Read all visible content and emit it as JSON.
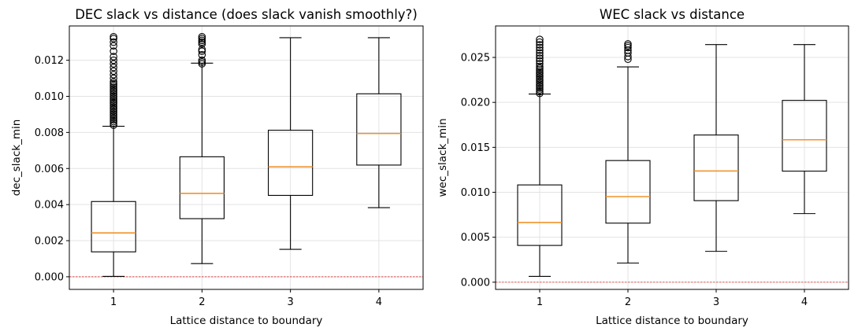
{
  "chart_data": [
    {
      "type": "boxplot",
      "title": "DEC slack vs distance (does slack vanish smoothly?)",
      "xlabel": "Lattice distance to boundary",
      "ylabel": "dec_slack_min",
      "categories": [
        "1",
        "2",
        "3",
        "4"
      ],
      "ylim": [
        -0.0007,
        0.0139
      ],
      "yticks": [
        "0.000",
        "0.002",
        "0.004",
        "0.006",
        "0.008",
        "0.010",
        "0.012"
      ],
      "ytick_values": [
        0.0,
        0.002,
        0.004,
        0.006,
        0.008,
        0.01,
        0.012
      ],
      "reference_line": 0.0,
      "grid": true,
      "boxes": [
        {
          "whislo": 2e-05,
          "q1": 0.00138,
          "med": 0.00243,
          "q3": 0.00417,
          "whishi": 0.00834,
          "fliers": [
            0.0084,
            0.0085,
            0.0086,
            0.0087,
            0.0088,
            0.0089,
            0.009,
            0.0091,
            0.0092,
            0.0093,
            0.0094,
            0.0095,
            0.0096,
            0.0097,
            0.0098,
            0.0099,
            0.01,
            0.0101,
            0.0102,
            0.0103,
            0.0104,
            0.0105,
            0.0106,
            0.0107,
            0.0108,
            0.011,
            0.0112,
            0.0114,
            0.0116,
            0.0118,
            0.012,
            0.0122,
            0.0125,
            0.0128,
            0.013,
            0.0132,
            0.0133
          ]
        },
        {
          "whislo": 0.00073,
          "q1": 0.00322,
          "med": 0.00462,
          "q3": 0.00665,
          "whishi": 0.01184,
          "fliers": [
            0.0118,
            0.0119,
            0.012,
            0.0123,
            0.0125,
            0.0126,
            0.0129,
            0.013,
            0.0131,
            0.0132,
            0.0133
          ]
        },
        {
          "whislo": 0.00152,
          "q1": 0.00451,
          "med": 0.00609,
          "q3": 0.00812,
          "whishi": 0.01325,
          "fliers": []
        },
        {
          "whislo": 0.00383,
          "q1": 0.00619,
          "med": 0.00794,
          "q3": 0.01014,
          "whishi": 0.01325,
          "fliers": []
        }
      ]
    },
    {
      "type": "boxplot",
      "title": "WEC slack vs distance",
      "xlabel": "Lattice distance to boundary",
      "ylabel": "wec_slack_min",
      "categories": [
        "1",
        "2",
        "3",
        "4"
      ],
      "ylim": [
        -0.0008,
        0.0285
      ],
      "yticks": [
        "0.000",
        "0.005",
        "0.010",
        "0.015",
        "0.020",
        "0.025"
      ],
      "ytick_values": [
        0.0,
        0.005,
        0.01,
        0.015,
        0.02,
        0.025
      ],
      "reference_line": 0.0,
      "grid": true,
      "boxes": [
        {
          "whislo": 0.00065,
          "q1": 0.00409,
          "med": 0.00664,
          "q3": 0.01082,
          "whishi": 0.02093,
          "fliers": [
            0.021,
            0.0212,
            0.0214,
            0.0216,
            0.0218,
            0.022,
            0.0222,
            0.0224,
            0.0226,
            0.0228,
            0.023,
            0.0232,
            0.0234,
            0.0236,
            0.0238,
            0.024,
            0.0243,
            0.0246,
            0.0249,
            0.0252,
            0.0255,
            0.0258,
            0.0261,
            0.0264,
            0.0267,
            0.027
          ]
        },
        {
          "whislo": 0.00213,
          "q1": 0.00657,
          "med": 0.00952,
          "q3": 0.01353,
          "whishi": 0.02395,
          "fliers": [
            0.0248,
            0.0251,
            0.0255,
            0.0258,
            0.0261,
            0.0263,
            0.0265
          ]
        },
        {
          "whislo": 0.00343,
          "q1": 0.00907,
          "med": 0.01237,
          "q3": 0.01637,
          "whishi": 0.02643,
          "fliers": []
        },
        {
          "whislo": 0.00763,
          "q1": 0.01235,
          "med": 0.01584,
          "q3": 0.02022,
          "whishi": 0.02643,
          "fliers": []
        }
      ]
    }
  ],
  "colors": {
    "box": "#000000",
    "median": "#f0932b",
    "reference": "#d62728",
    "grid": "#e3e3e3"
  }
}
